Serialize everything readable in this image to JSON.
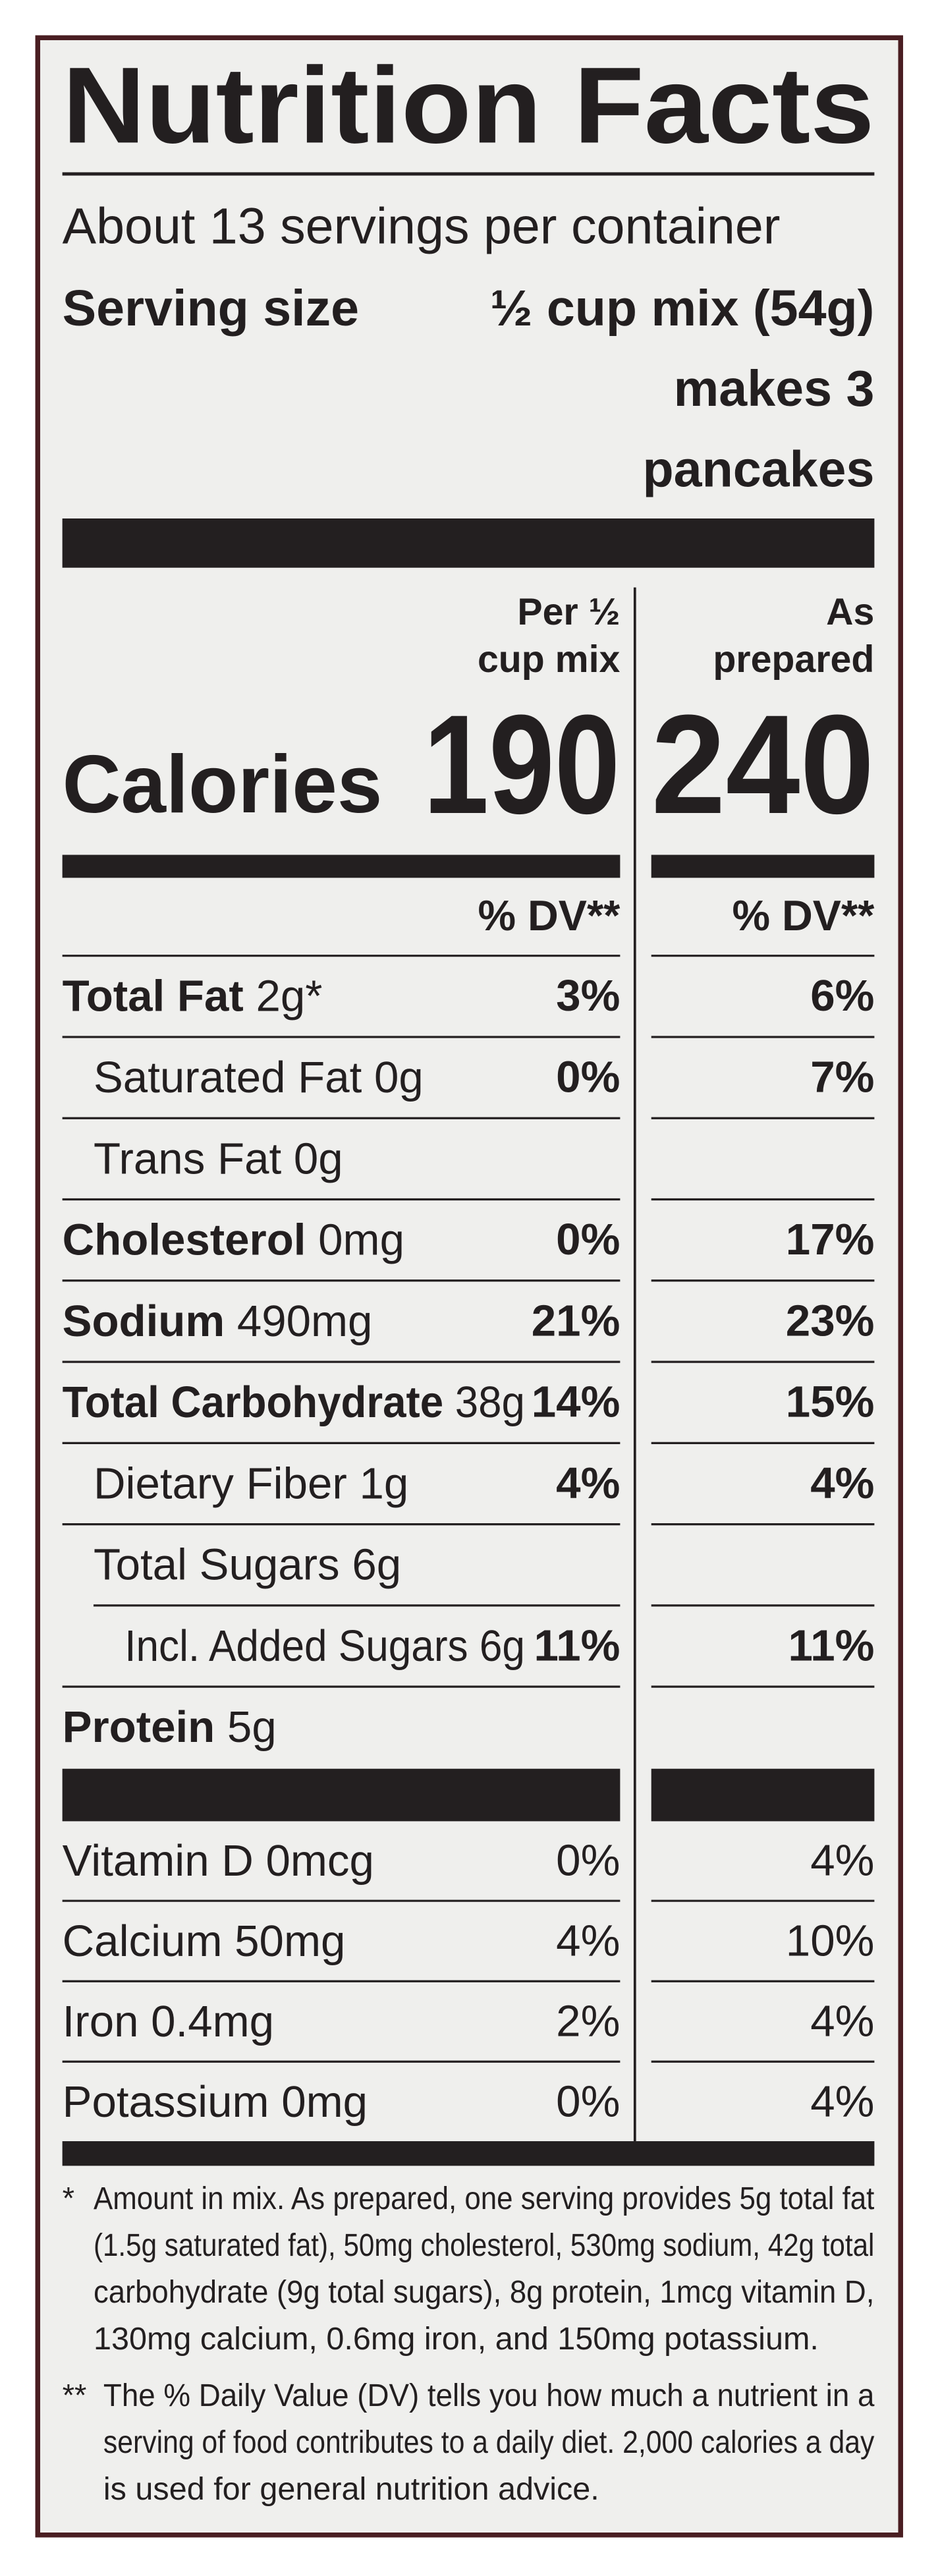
{
  "title": "Nutrition Facts",
  "servings": "About 13 servings per container",
  "serving_size_label": "Serving size",
  "serving_size_lines": [
    "½ cup mix (54g)",
    "makes 3",
    "pancakes"
  ],
  "columns": [
    [
      "Per ½",
      "cup mix"
    ],
    [
      "As",
      "prepared"
    ]
  ],
  "calories": {
    "label": "Calories",
    "values": [
      "190",
      "240"
    ]
  },
  "dv_header": [
    "% DV**",
    "% DV**"
  ],
  "nutrients": [
    {
      "name": "Total Fat",
      "amount": "2g*",
      "bold": true,
      "indent": 0,
      "dv": [
        "3%",
        "6%"
      ]
    },
    {
      "name": "Saturated Fat",
      "amount": "0g",
      "bold": false,
      "indent": 1,
      "dv": [
        "0%",
        "7%"
      ]
    },
    {
      "name": "Trans Fat",
      "amount": "0g",
      "bold": false,
      "indent": 1,
      "dv": []
    },
    {
      "name": "Cholesterol",
      "amount": "0mg",
      "bold": true,
      "indent": 0,
      "dv": [
        "0%",
        "17%"
      ]
    },
    {
      "name": "Sodium",
      "amount": "490mg",
      "bold": true,
      "indent": 0,
      "dv": [
        "21%",
        "23%"
      ]
    },
    {
      "name": "Total Carbohydrate",
      "amount": "38g",
      "bold": true,
      "indent": 0,
      "dv": [
        "14%",
        "15%"
      ]
    },
    {
      "name": "Dietary Fiber",
      "amount": "1g",
      "bold": false,
      "indent": 1,
      "dv": [
        "4%",
        "4%"
      ]
    },
    {
      "name": "Total Sugars",
      "amount": "6g",
      "bold": false,
      "indent": 1,
      "dv": []
    },
    {
      "name": "Incl. Added Sugars",
      "amount": "6g",
      "bold": false,
      "indent": 2,
      "dv": [
        "11%",
        "11%"
      ]
    },
    {
      "name": "Protein",
      "amount": "5g",
      "bold": true,
      "indent": 0,
      "dv": []
    }
  ],
  "vitamins": [
    {
      "name": "Vitamin D",
      "amount": "0mcg",
      "dv": [
        "0%",
        "4%"
      ]
    },
    {
      "name": "Calcium",
      "amount": "50mg",
      "dv": [
        "4%",
        "10%"
      ]
    },
    {
      "name": "Iron",
      "amount": "0.4mg",
      "dv": [
        "2%",
        "4%"
      ]
    },
    {
      "name": "Potassium",
      "amount": "0mg",
      "dv": [
        "0%",
        "4%"
      ]
    }
  ],
  "footnotes": [
    {
      "marker": "*",
      "lines": [
        "Amount in mix. As prepared, one serving provides 5g total fat",
        "(1.5g saturated fat), 50mg cholesterol, 530mg sodium, 42g total",
        "carbohydrate (9g total sugars), 8g protein, 1mcg vitamin D,",
        "130mg calcium, 0.6mg iron, and 150mg potassium."
      ]
    },
    {
      "marker": "**",
      "lines": [
        "The % Daily Value (DV) tells you how much a nutrient in a",
        "serving of food contributes to a daily diet. 2,000 calories a day",
        "is used for general nutrition advice."
      ]
    }
  ]
}
